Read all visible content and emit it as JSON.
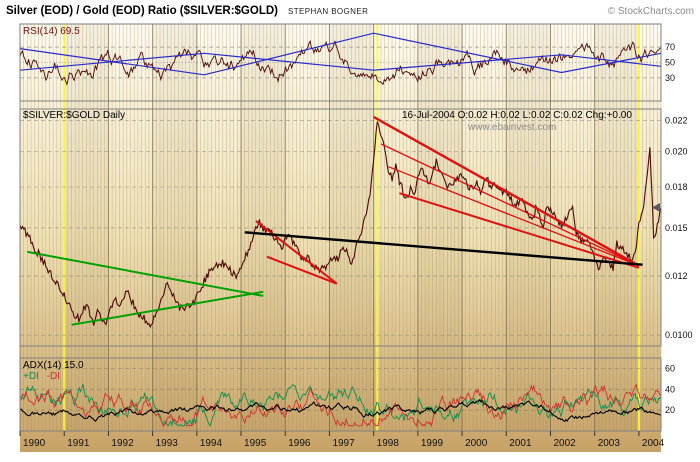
{
  "header": {
    "title": "Silver (EOD) / Gold (EOD) Ratio ($SILVER:$GOLD)",
    "author": "STEPHAN BOGNER",
    "copyright": "© StockCharts.com"
  },
  "rsi_panel": {
    "label": "RSI(14) 69.5",
    "tick_labels": [
      "70",
      "50",
      "30"
    ],
    "tick_values": [
      70,
      50,
      30
    ]
  },
  "main_panel": {
    "label": "$SILVER:$GOLD Daily",
    "ohlc": "16-Jul-2004 O:0.02 H:0.02 L:0.02 C:0.02 Chg:+0.00",
    "watermark": "www.ebainvest.com",
    "ticks": [
      {
        "label": "0.022",
        "value": 0.0225
      },
      {
        "label": "0.020",
        "value": 0.02
      },
      {
        "label": "0.018",
        "value": 0.0175
      },
      {
        "label": "0.015",
        "value": 0.015
      },
      {
        "label": "0.012",
        "value": 0.0125
      },
      {
        "label": "0.0100",
        "value": 0.01
      }
    ]
  },
  "adx_panel": {
    "label": "ADX(14) 15.0",
    "legend_plus": "+DI",
    "legend_minus": "-DI",
    "tick_labels": [
      "60",
      "40",
      "20"
    ],
    "tick_values": [
      60,
      40,
      20
    ]
  },
  "x_axis": {
    "years": [
      "1990",
      "1991",
      "1992",
      "1993",
      "1994",
      "1995",
      "1996",
      "1997",
      "1998",
      "1999",
      "2000",
      "2001",
      "2002",
      "2003",
      "2004"
    ]
  },
  "colors": {
    "maroon": "#4d0808",
    "blue": "#2a2acc",
    "green": "#00a000",
    "red": "#e01010",
    "black": "#000000",
    "yellow": "#ffff33",
    "grid_month": "#93804f",
    "grid_year": "#6f5f3e",
    "panel_border": "#7f7f7f",
    "adx_plus": "#0a8f4e",
    "adx_minus": "#d03030",
    "marker": "#5a5a5a"
  },
  "chart_data": {
    "type": "line",
    "title": "Silver (EOD) / Gold (EOD) Ratio ($SILVER:$GOLD)",
    "x_start": "1990-01",
    "x_end": "2004-07",
    "x_unit": "monthly approximation of daily ratio",
    "y_scale": "log",
    "ylim": [
      0.0096,
      0.0235
    ],
    "y_ticks": [
      0.01,
      0.0125,
      0.015,
      0.0175,
      0.02,
      0.0225
    ],
    "legend_position": "none",
    "grid": true,
    "series": [
      {
        "name": "$SILVER:$GOLD",
        "values": [
          0.0152,
          0.0149,
          0.0146,
          0.0143,
          0.0139,
          0.0136,
          0.0133,
          0.013,
          0.0127,
          0.0124,
          0.0121,
          0.0119,
          0.0116,
          0.0113,
          0.011,
          0.0108,
          0.0106,
          0.011,
          0.0112,
          0.0108,
          0.0105,
          0.0109,
          0.0107,
          0.0104,
          0.0108,
          0.0111,
          0.0114,
          0.0112,
          0.0116,
          0.0118,
          0.0115,
          0.0112,
          0.0109,
          0.0107,
          0.0106,
          0.0104,
          0.0106,
          0.0109,
          0.0113,
          0.0117,
          0.0121,
          0.0118,
          0.0115,
          0.0112,
          0.011,
          0.0112,
          0.0111,
          0.0113,
          0.0116,
          0.0119,
          0.0123,
          0.0126,
          0.0129,
          0.0131,
          0.0129,
          0.0132,
          0.013,
          0.0128,
          0.0126,
          0.0125,
          0.0129,
          0.0133,
          0.0138,
          0.0144,
          0.0149,
          0.0153,
          0.015,
          0.0147,
          0.0149,
          0.0145,
          0.0142,
          0.0139,
          0.0143,
          0.0146,
          0.0142,
          0.0139,
          0.0136,
          0.0133,
          0.0134,
          0.0131,
          0.013,
          0.0128,
          0.013,
          0.0129,
          0.0132,
          0.0135,
          0.0133,
          0.0136,
          0.0139,
          0.0137,
          0.0131,
          0.0138,
          0.0144,
          0.0151,
          0.0159,
          0.0172,
          0.0196,
          0.0225,
          0.0211,
          0.0204,
          0.0186,
          0.0181,
          0.019,
          0.0179,
          0.0172,
          0.0168,
          0.0173,
          0.0169,
          0.0181,
          0.019,
          0.0183,
          0.0176,
          0.0186,
          0.0192,
          0.0187,
          0.0179,
          0.0173,
          0.0176,
          0.0179,
          0.0182,
          0.0184,
          0.0179,
          0.0173,
          0.0176,
          0.0179,
          0.0173,
          0.0177,
          0.0179,
          0.0173,
          0.0178,
          0.0175,
          0.0171,
          0.0173,
          0.0169,
          0.0163,
          0.0165,
          0.0167,
          0.0162,
          0.0158,
          0.0153,
          0.0161,
          0.0157,
          0.0151,
          0.0162,
          0.0161,
          0.0157,
          0.0153,
          0.0151,
          0.0155,
          0.0159,
          0.0161,
          0.0148,
          0.0144,
          0.0142,
          0.0145,
          0.014,
          0.0133,
          0.0129,
          0.0132,
          0.0135,
          0.0131,
          0.0129,
          0.0141,
          0.0139,
          0.0137,
          0.0135,
          0.0133,
          0.0137,
          0.0152,
          0.0159,
          0.0179,
          0.0205,
          0.0145,
          0.0151,
          0.0162
        ]
      }
    ],
    "last_close": 0.0162,
    "ohlc_readout": {
      "date": "16-Jul-2004",
      "o": 0.02,
      "h": 0.02,
      "l": 0.02,
      "c": 0.02,
      "chg": 0.0
    },
    "rsi": {
      "label": "RSI(14)",
      "last": 69.5,
      "range": [
        0,
        100
      ],
      "ticks": [
        30,
        50,
        70
      ]
    },
    "adx": {
      "label": "ADX(14)",
      "last": 15.0,
      "ticks": [
        20,
        40,
        60
      ]
    },
    "yellow_vline_month_indices": [
      12,
      97,
      168
    ],
    "main_annotations": [
      {
        "from": [
          2,
          0.0137
        ],
        "to": [
          66,
          0.0116
        ],
        "color": "green",
        "w": 2
      },
      {
        "from": [
          14,
          0.0104
        ],
        "to": [
          66,
          0.01178
        ],
        "color": "green",
        "w": 2
      },
      {
        "from": [
          64,
          0.0154
        ],
        "to": [
          86,
          0.01215
        ],
        "color": "red",
        "w": 2
      },
      {
        "from": [
          67,
          0.01345
        ],
        "to": [
          86,
          0.01215
        ],
        "color": "red",
        "w": 2
      },
      {
        "from": [
          96,
          0.0228
        ],
        "to": [
          168,
          0.013
        ],
        "color": "red",
        "w": 2.4
      },
      {
        "from": [
          98,
          0.0206
        ],
        "to": [
          168,
          0.013
        ],
        "color": "red",
        "w": 1.3
      },
      {
        "from": [
          100,
          0.0189
        ],
        "to": [
          168,
          0.013
        ],
        "color": "red",
        "w": 1.3
      },
      {
        "from": [
          103,
          0.0171
        ],
        "to": [
          168,
          0.0129
        ],
        "color": "red",
        "w": 2
      },
      {
        "from": [
          61,
          0.01475
        ],
        "to": [
          169,
          0.01305
        ],
        "color": "black",
        "w": 2.4
      }
    ],
    "rsi_annotations": [
      {
        "points": [
          [
            0,
            68
          ],
          [
            50,
            34
          ],
          [
            96,
            88
          ],
          [
            147,
            37
          ],
          [
            174,
            62
          ]
        ],
        "color": "blue"
      },
      {
        "points": [
          [
            0,
            40
          ],
          [
            50,
            62
          ],
          [
            96,
            40
          ],
          [
            147,
            60
          ],
          [
            174,
            45
          ]
        ],
        "color": "blue"
      }
    ],
    "noise_seed": 20040716
  }
}
